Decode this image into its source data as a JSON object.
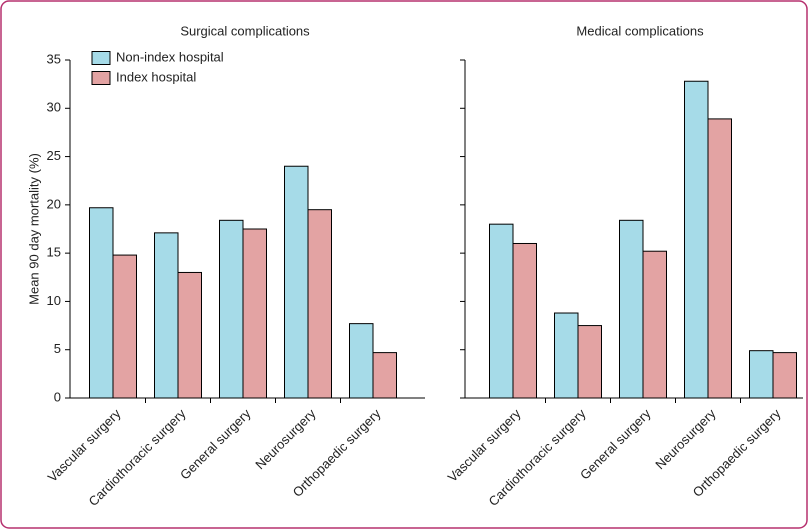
{
  "chart_data": [
    {
      "type": "bar",
      "title": "Surgical complications",
      "y_label": "Mean 90 day mortality (%)",
      "categories": [
        "Vascular surgery",
        "Cardiothoracic surgery",
        "General surgery",
        "Neurosurgery",
        "Orthopaedic surgery"
      ],
      "series": [
        {
          "name": "Non-index hospital",
          "color": "#a6dbe8",
          "values": [
            19.7,
            17.1,
            18.4,
            24,
            7.7
          ]
        },
        {
          "name": "Index hospital",
          "color": "#e3a3a3",
          "values": [
            14.8,
            13,
            17.5,
            19.5,
            4.7
          ]
        }
      ],
      "ylim": [
        0,
        35
      ],
      "yticks": [
        0,
        5,
        10,
        15,
        20,
        25,
        30,
        35
      ],
      "legend": "upper left"
    },
    {
      "type": "bar",
      "title": "Medical complications",
      "categories": [
        "Vascular surgery",
        "Cardiothoracic surgery",
        "General surgery",
        "Neurosurgery",
        "Orthopaedic surgery"
      ],
      "series": [
        {
          "color": "#a6dbe8",
          "values": [
            18,
            8.8,
            18.4,
            32.8,
            4.9
          ]
        },
        {
          "color": "#e3a3a3",
          "values": [
            16,
            7.5,
            15.2,
            28.9,
            4.7
          ]
        }
      ],
      "ylim": [
        0,
        35
      ],
      "yticks": [
        0,
        5,
        10,
        15,
        20,
        25,
        30,
        35
      ]
    }
  ]
}
